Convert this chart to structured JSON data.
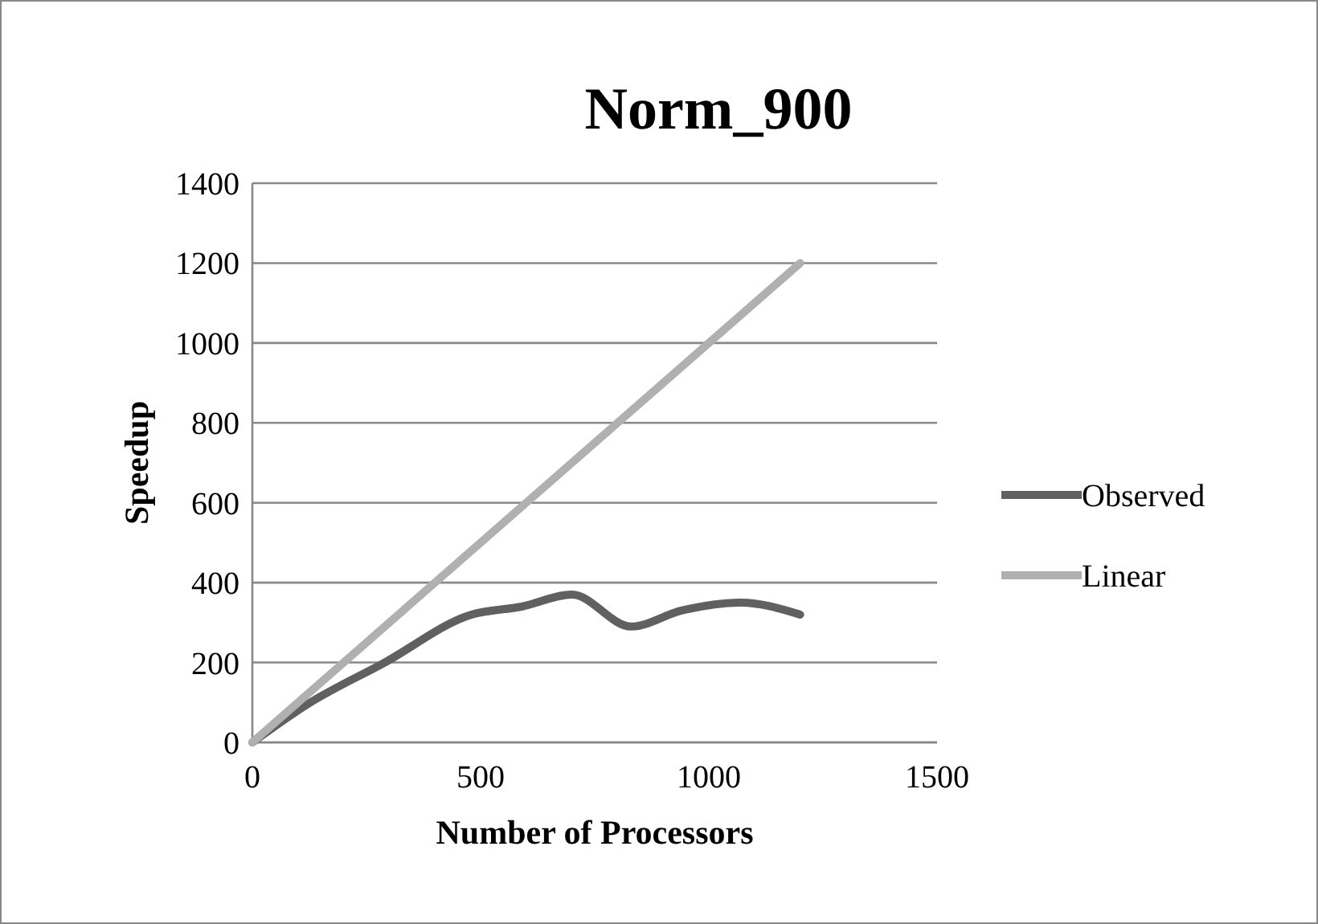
{
  "chart_data": {
    "type": "line",
    "title": "Norm_900",
    "xlabel": "Number of Processors",
    "ylabel": "Speedup",
    "xlim": [
      0,
      1500
    ],
    "xticks": [
      0,
      500,
      1000,
      1500
    ],
    "ylim": [
      0,
      1400
    ],
    "yticks": [
      0,
      200,
      400,
      600,
      800,
      1000,
      1200,
      1400
    ],
    "grid": "y",
    "legend": "right",
    "marker": "none",
    "series": [
      {
        "name": "Observed",
        "color": "#606060",
        "x": [
          0,
          120,
          290,
          480,
          590,
          700,
          830,
          940,
          1070,
          1200
        ],
        "values": [
          0,
          95,
          200,
          320,
          340,
          370,
          290,
          330,
          350,
          320
        ]
      },
      {
        "name": "Linear",
        "color": "#b0b0b0",
        "x": [
          0,
          1200
        ],
        "values": [
          0,
          1200
        ]
      }
    ]
  }
}
